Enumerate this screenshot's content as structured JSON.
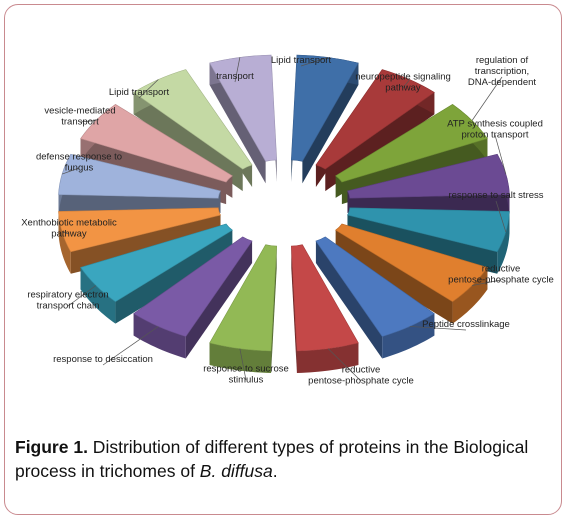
{
  "chart_data": {
    "type": "pie",
    "style": "3d-exploded",
    "slices": [
      {
        "label": "Lipid transport",
        "value": 1,
        "color": "#3f6fa8"
      },
      {
        "label": "neuropeptide signaling pathway",
        "value": 1,
        "color": "#a83a3a"
      },
      {
        "label": "regulation of transcription, DNA-dependent",
        "value": 1,
        "color": "#7ea43a"
      },
      {
        "label": "ATP synthesis coupled proton transport",
        "value": 1,
        "color": "#6b4a93"
      },
      {
        "label": "response to salt stress",
        "value": 1,
        "color": "#2f93ad"
      },
      {
        "label": "reductive pentose-phosphate cycle",
        "value": 1,
        "color": "#e07f2e"
      },
      {
        "label": "Peptide crosslinkage",
        "value": 1,
        "color": "#4d79c0"
      },
      {
        "label": "reductive pentose-phosphate cycle",
        "value": 1,
        "color": "#c44848"
      },
      {
        "label": "response to sucrose stimulus",
        "value": 1,
        "color": "#92b955"
      },
      {
        "label": "response to desiccation",
        "value": 1,
        "color": "#7a5aa6"
      },
      {
        "label": "respiratory electron transport chain",
        "value": 1,
        "color": "#3aa6bf"
      },
      {
        "label": "Xenthobiotic metabolic pathway",
        "value": 1,
        "color": "#f29444"
      },
      {
        "label": "defense response to fungus",
        "value": 1,
        "color": "#9fb3dc"
      },
      {
        "label": "vesicle-mediated transport",
        "value": 1,
        "color": "#dfa5a6"
      },
      {
        "label": "Lipid transport",
        "value": 1,
        "color": "#c4d9a4"
      },
      {
        "label": "transport",
        "value": 1,
        "color": "#b8aed4"
      }
    ]
  },
  "caption": {
    "bold": "Figure 1.",
    "text": " Distribution of different types of proteins in the Biological process in trichomes of ",
    "italic": "B. diffusa",
    "end": "."
  }
}
